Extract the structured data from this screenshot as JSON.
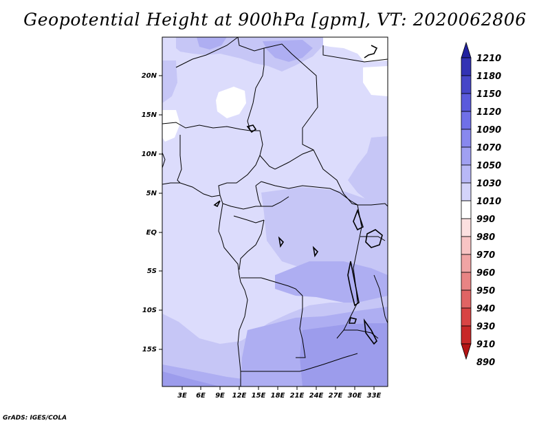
{
  "map": {
    "title": "Geopotential Height at 900hPa [gpm], VT: 2020062806",
    "credit": "GrADS: IGES/COLA",
    "lat_labels": [
      "20N",
      "15N",
      "10N",
      "5N",
      "EQ",
      "5S",
      "10S",
      "15S"
    ],
    "lon_labels": [
      "3E",
      "6E",
      "9E",
      "12E",
      "15E",
      "18E",
      "21E",
      "24E",
      "27E",
      "30E",
      "33E"
    ],
    "colorbar": {
      "levels": [
        "1210",
        "1180",
        "1150",
        "1120",
        "1090",
        "1070",
        "1050",
        "1030",
        "1010",
        "990",
        "980",
        "970",
        "960",
        "950",
        "940",
        "930",
        "910",
        "890"
      ],
      "colors": [
        "#2222a0",
        "#3232b4",
        "#4646c8",
        "#5a5adc",
        "#7070e8",
        "#8888ee",
        "#a0a0f2",
        "#b8b8f6",
        "#d4d4fa",
        "#ffffff",
        "#fce0e0",
        "#f8c4c4",
        "#f0a4a4",
        "#e88484",
        "#e06464",
        "#d84444",
        "#c82828",
        "#b41414"
      ]
    },
    "field_colors": {
      "very_light": "#dcdcfc",
      "light": "#c6c6f6",
      "medium": "#aeaef2",
      "dark": "#9c9cec",
      "darker": "#8c8ce8"
    }
  }
}
